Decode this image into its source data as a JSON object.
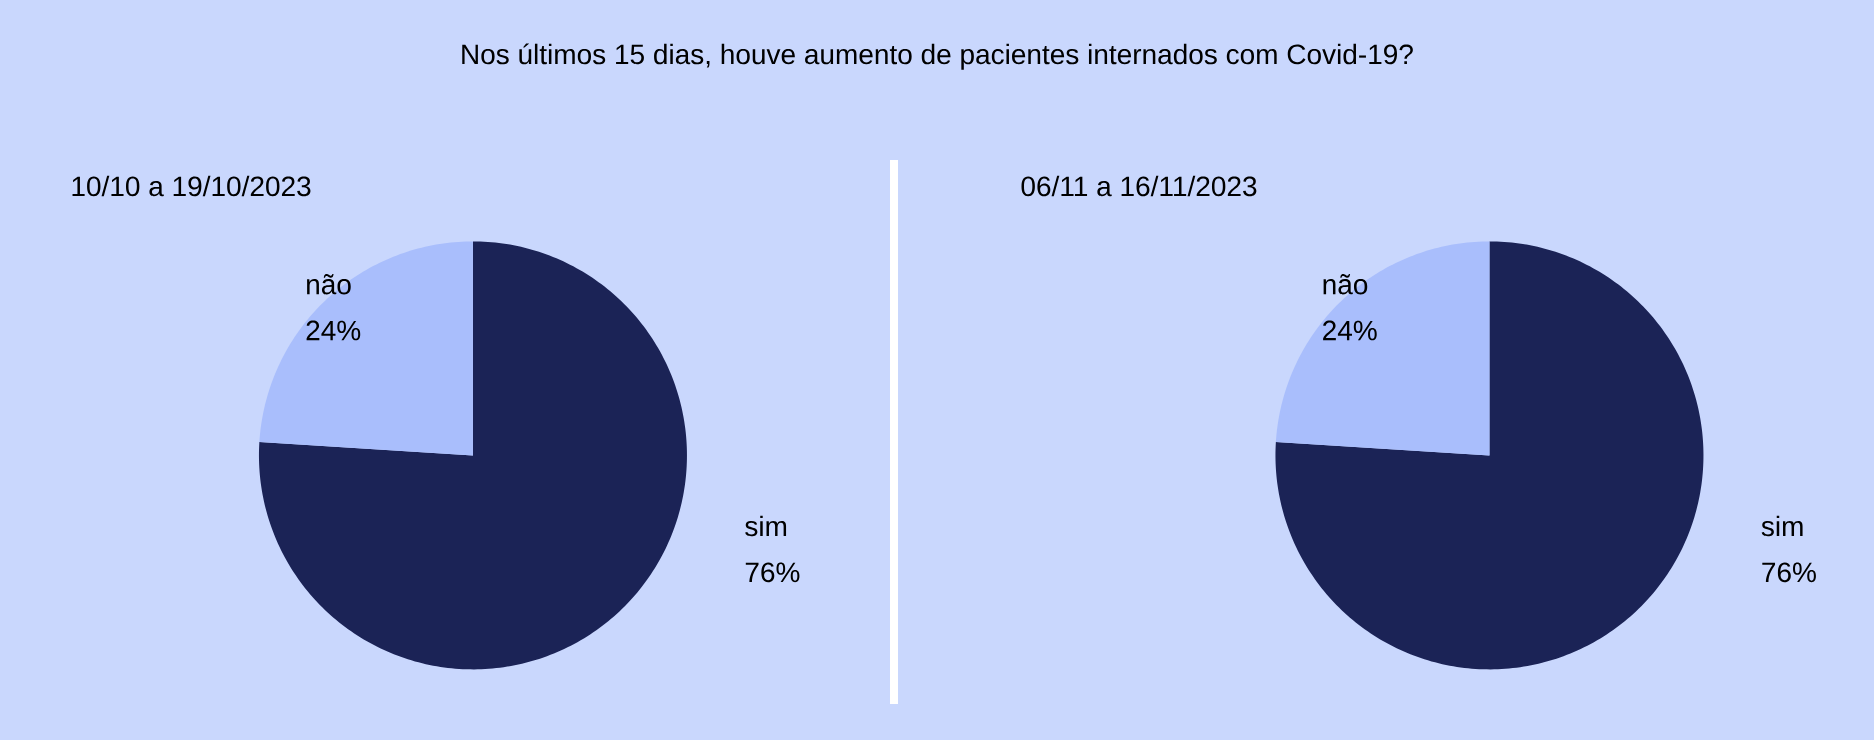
{
  "chart_data": [
    {
      "type": "pie",
      "title": "Nos últimos 15 dias, houve aumento de pacientes internados com Covid-19?",
      "subtitle": "10/10 a 19/10/2023",
      "categories": [
        "sim",
        "não"
      ],
      "values": [
        76,
        24
      ],
      "value_labels": [
        "76%",
        "24%"
      ],
      "colors": [
        "#1b2356",
        "#a9befc"
      ]
    },
    {
      "type": "pie",
      "subtitle": "06/11 a 16/11/2023",
      "categories": [
        "sim",
        "não"
      ],
      "values": [
        76,
        24
      ],
      "value_labels": [
        "76%",
        "24%"
      ],
      "colors": [
        "#1b2356",
        "#a9befc"
      ]
    }
  ]
}
